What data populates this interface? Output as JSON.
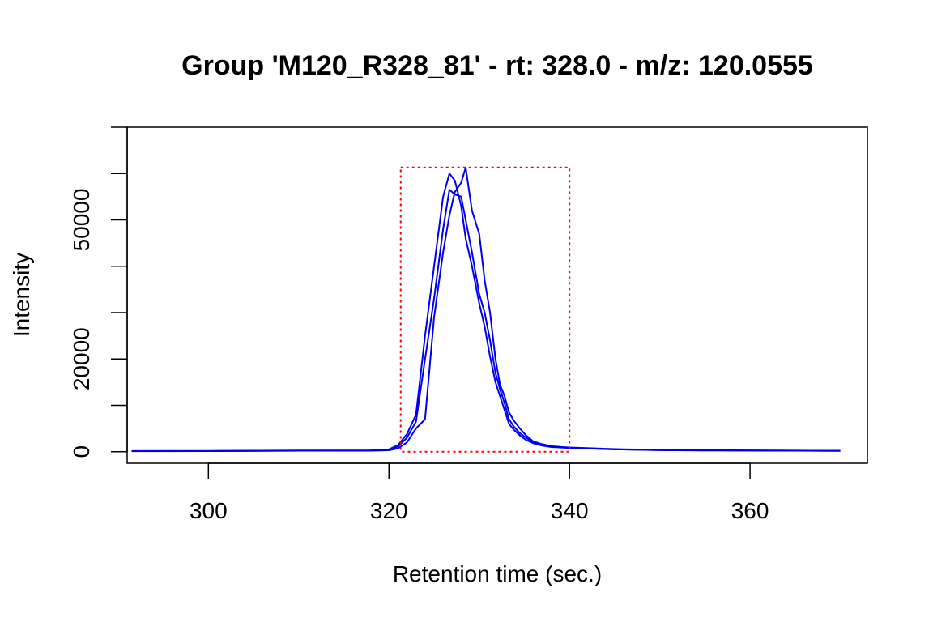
{
  "chart_data": {
    "type": "line",
    "title": "Group 'M120_R328_81' - rt: 328.0 - m/z: 120.0555",
    "xlabel": "Retention time (sec.)",
    "ylabel": "Intensity",
    "xlim": [
      291,
      373
    ],
    "ylim": [
      -2500,
      70000
    ],
    "x_ticks": [
      300,
      320,
      340,
      360
    ],
    "x_tick_labels": [
      "300",
      "320",
      "340",
      "360"
    ],
    "y_ticks": [
      0,
      10000,
      20000,
      30000,
      40000,
      50000,
      60000,
      70000
    ],
    "y_tick_labels": [
      {
        "value": 0,
        "label": "0"
      },
      {
        "value": 20000,
        "label": "20000"
      },
      {
        "value": 50000,
        "label": "50000"
      }
    ],
    "grid": false,
    "colors": {
      "series": "#0000ee",
      "peak_box": "#ff0000"
    },
    "peak_box": {
      "rt_min": 321.3,
      "rt_max": 340.0,
      "into_min": 0,
      "into_max": 61300
    },
    "series": [
      {
        "x": [
          291.5,
          300,
          310,
          318,
          320,
          321,
          322,
          323,
          324,
          325,
          326,
          326.7,
          327.3,
          328,
          328.5,
          329.2,
          330,
          330.6,
          331.2,
          331.8,
          332.3,
          332.8,
          333.3,
          333.8,
          334.5,
          335.2,
          336,
          337,
          338,
          340,
          345,
          350,
          355,
          360,
          365,
          370
        ],
        "y": [
          150,
          150,
          250,
          250,
          500,
          1400,
          3800,
          8000,
          25000,
          40000,
          55000,
          60000,
          58500,
          53000,
          46000,
          40000,
          32000,
          27000,
          20500,
          15000,
          12000,
          9000,
          6000,
          4800,
          3500,
          2500,
          1800,
          1300,
          1000,
          800,
          500,
          350,
          280,
          250,
          200,
          200
        ]
      },
      {
        "x": [
          291.5,
          300,
          310,
          318,
          320,
          321,
          322,
          323,
          324,
          325,
          326,
          326.7,
          327.3,
          328,
          328.5,
          329.2,
          330,
          330.6,
          331.2,
          331.8,
          332.3,
          332.8,
          333.3,
          333.8,
          334.5,
          335.2,
          336,
          337,
          338,
          340,
          345,
          350,
          355,
          360,
          365,
          370
        ],
        "y": [
          120,
          150,
          200,
          250,
          400,
          1100,
          3000,
          6500,
          20000,
          33000,
          48000,
          56500,
          55500,
          55000,
          50000,
          43000,
          34000,
          30000,
          24000,
          17000,
          13500,
          10500,
          7000,
          5500,
          4000,
          3000,
          2000,
          1500,
          1100,
          900,
          550,
          380,
          300,
          260,
          220,
          180
        ]
      },
      {
        "x": [
          291.5,
          300,
          310,
          318,
          320,
          321,
          322,
          323,
          324,
          325,
          326,
          326.7,
          327.3,
          328,
          328.5,
          329.2,
          330,
          330.6,
          331.2,
          331.8,
          332.3,
          332.8,
          333.3,
          333.8,
          334.5,
          335.2,
          336,
          337,
          338,
          340,
          345,
          350,
          355,
          360,
          365,
          370
        ],
        "y": [
          100,
          120,
          200,
          200,
          300,
          700,
          2000,
          5000,
          7000,
          29000,
          43000,
          51000,
          56000,
          58000,
          61300,
          52000,
          47000,
          37000,
          30000,
          20000,
          14500,
          12000,
          8500,
          6800,
          5000,
          3500,
          2200,
          1600,
          1200,
          850,
          500,
          320,
          260,
          230,
          200,
          170
        ]
      }
    ]
  }
}
